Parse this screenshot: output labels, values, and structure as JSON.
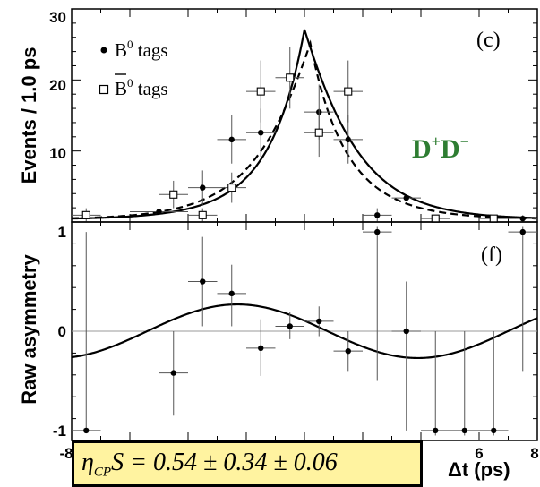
{
  "chart_data": [
    {
      "id": "top",
      "type": "scatter",
      "panel_label": "(c)",
      "ylabel": "Events / 1.0 ps",
      "xlim": [
        -8,
        8
      ],
      "ylim": [
        0,
        31
      ],
      "yticks": [
        "10",
        "20",
        "30"
      ],
      "annotation": {
        "base": "D",
        "sup1": "+",
        "mid": "D",
        "sup2": "−"
      },
      "legend": [
        {
          "marker": "filled-circle",
          "base": "B",
          "sup": "0",
          "overbar": false,
          "suffix": " tags"
        },
        {
          "marker": "open-square",
          "base": "B",
          "sup": "0",
          "overbar": true,
          "suffix": " tags"
        }
      ],
      "series": [
        {
          "marker": "filled-circle",
          "points": [
            {
              "x": -5.0,
              "y": 1.5,
              "xerr": 1.0,
              "yerr": 1.5
            },
            {
              "x": -3.5,
              "y": 5.0,
              "xerr": 0.5,
              "yerr": 2.5
            },
            {
              "x": -2.5,
              "y": 12.0,
              "xerr": 0.5,
              "yerr": 3.5
            },
            {
              "x": -1.5,
              "y": 13.0,
              "xerr": 0.5,
              "yerr": 3.5
            },
            {
              "x": 0.5,
              "y": 16.0,
              "xerr": 0.5,
              "yerr": 4.0
            },
            {
              "x": 1.5,
              "y": 12.0,
              "xerr": 0.5,
              "yerr": 3.5
            },
            {
              "x": 2.5,
              "y": 1.0,
              "xerr": 0.5,
              "yerr": 1.0
            },
            {
              "x": 3.5,
              "y": 3.5,
              "xerr": 0.5,
              "yerr": 0.3
            },
            {
              "x": 7.5,
              "y": 0.5,
              "xerr": 0.5,
              "yerr": 0.5
            }
          ]
        },
        {
          "marker": "open-square",
          "points": [
            {
              "x": -7.5,
              "y": 1.0,
              "xerr": 0.5,
              "yerr": 1.0
            },
            {
              "x": -4.5,
              "y": 4.0,
              "xerr": 0.5,
              "yerr": 2.0
            },
            {
              "x": -3.5,
              "y": 1.0,
              "xerr": 0.5,
              "yerr": 1.0
            },
            {
              "x": -2.5,
              "y": 5.0,
              "xerr": 0.5,
              "yerr": 2.2
            },
            {
              "x": -1.5,
              "y": 19.0,
              "xerr": 0.5,
              "yerr": 4.5
            },
            {
              "x": -0.5,
              "y": 21.0,
              "xerr": 0.5,
              "yerr": 4.5
            },
            {
              "x": 0.5,
              "y": 13.0,
              "xerr": 0.5,
              "yerr": 3.5
            },
            {
              "x": 1.5,
              "y": 19.0,
              "xerr": 0.5,
              "yerr": 4.5
            },
            {
              "x": 4.5,
              "y": 0.5,
              "xerr": 0.5,
              "yerr": 0.5
            },
            {
              "x": 6.5,
              "y": 0.5,
              "xerr": 0.5,
              "yerr": 0.5
            }
          ]
        }
      ],
      "curves": [
        {
          "style": "solid",
          "peak": 28.0,
          "mu": 0.0,
          "tau": 1.53,
          "base": 0.4,
          "asym": 0.26
        },
        {
          "style": "dashed",
          "peak": 26.0,
          "mu": 0.2,
          "tau": 1.53,
          "base": 0.4,
          "asym": -0.26
        }
      ]
    },
    {
      "id": "bottom",
      "type": "scatter",
      "panel_label": "(f)",
      "ylabel": "Raw asymmetry",
      "xlim": [
        -8,
        8
      ],
      "ylim": [
        -1.1,
        1.1
      ],
      "yticks": [
        "-1",
        "0",
        "1"
      ],
      "xticks": [
        "-8",
        "6",
        "8"
      ],
      "xlabel": "Δt (ps)",
      "points": [
        {
          "x": -7.5,
          "y": -1.0,
          "xerr": 0.5,
          "ylo": -1.0,
          "yhi": 1.0
        },
        {
          "x": -4.5,
          "y": -0.42,
          "xerr": 0.5,
          "ylo": -0.85,
          "yhi": 0.0
        },
        {
          "x": -3.5,
          "y": 0.5,
          "xerr": 0.5,
          "ylo": 0.05,
          "yhi": 0.95
        },
        {
          "x": -2.5,
          "y": 0.38,
          "xerr": 0.5,
          "ylo": 0.05,
          "yhi": 0.67
        },
        {
          "x": -1.5,
          "y": -0.17,
          "xerr": 0.5,
          "ylo": -0.45,
          "yhi": 0.12
        },
        {
          "x": -0.5,
          "y": 0.05,
          "xerr": 0.5,
          "ylo": -0.08,
          "yhi": 0.19
        },
        {
          "x": 0.5,
          "y": 0.1,
          "xerr": 0.5,
          "ylo": -0.05,
          "yhi": 0.25
        },
        {
          "x": 1.5,
          "y": -0.2,
          "xerr": 0.5,
          "ylo": -0.4,
          "yhi": 0.0
        },
        {
          "x": 2.5,
          "y": 1.0,
          "xerr": 0.5,
          "ylo": -0.5,
          "yhi": 1.05
        },
        {
          "x": 3.5,
          "y": 0.0,
          "xerr": 0.5,
          "ylo": -1.0,
          "yhi": 0.5
        },
        {
          "x": 4.5,
          "y": -1.0,
          "xerr": 0.5,
          "ylo": -1.05,
          "yhi": 0.0
        },
        {
          "x": 5.5,
          "y": -1.0,
          "xerr": 0.5,
          "ylo": -1.05,
          "yhi": 0.0
        },
        {
          "x": 6.5,
          "y": -1.0,
          "xerr": 0.5,
          "ylo": -1.05,
          "yhi": 0.0
        },
        {
          "x": 7.5,
          "y": 1.0,
          "xerr": 0.5,
          "ylo": -0.4,
          "yhi": 1.05
        }
      ],
      "curve": {
        "amplitude": 0.27,
        "dm": 0.507,
        "phase_deg": -23.0
      }
    }
  ],
  "formula": {
    "lhs": "η",
    "sub": "CP",
    "rhs": "S = 0.54 ± 0.34 ± 0.06"
  }
}
